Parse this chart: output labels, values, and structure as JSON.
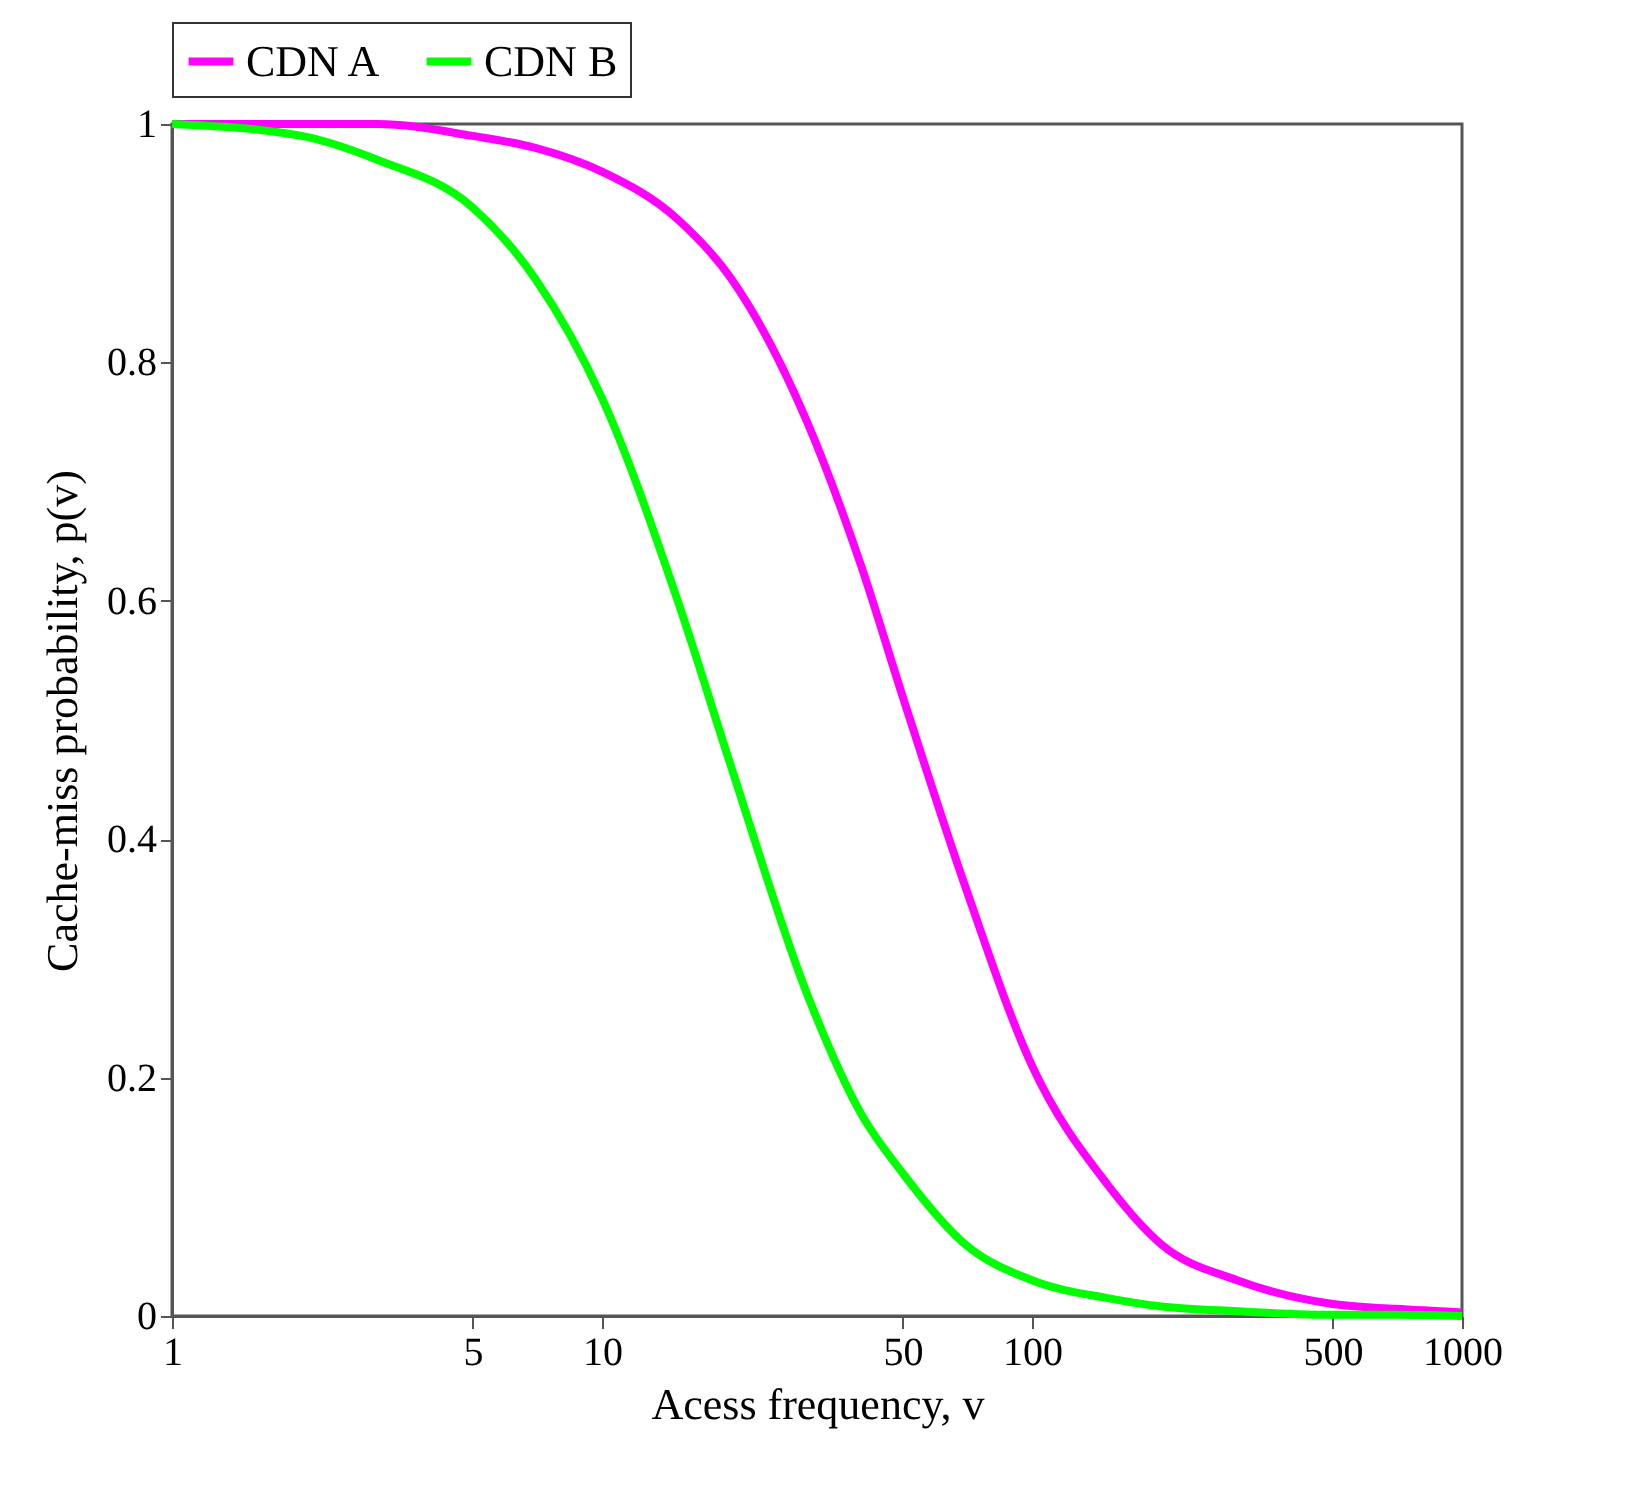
{
  "chart_data": {
    "type": "line",
    "xlabel": "Acess frequency, v",
    "ylabel": "Cache-miss probability, p(v)",
    "x": [
      1,
      2,
      3,
      5,
      7,
      10,
      15,
      20,
      30,
      40,
      50,
      70,
      100,
      150,
      200,
      300,
      500,
      700,
      1000
    ],
    "series": [
      {
        "name": "CDN A",
        "color": "#ff00ff",
        "values": [
          1.0,
          1.0,
          1.0,
          0.99,
          0.98,
          0.96,
          0.92,
          0.87,
          0.75,
          0.63,
          0.52,
          0.36,
          0.21,
          0.11,
          0.06,
          0.03,
          0.01,
          0.006,
          0.003
        ]
      },
      {
        "name": "CDN B",
        "color": "#00ff00",
        "values": [
          1.0,
          0.99,
          0.97,
          0.93,
          0.87,
          0.77,
          0.6,
          0.46,
          0.27,
          0.17,
          0.12,
          0.06,
          0.03,
          0.015,
          0.008,
          0.004,
          0.001,
          0.001,
          0.0
        ]
      }
    ],
    "log": "x",
    "xlim": [
      1,
      1000
    ],
    "xticks": [
      1,
      5,
      10,
      50,
      100,
      500,
      1000
    ],
    "ylim": [
      0,
      1
    ],
    "yticks": [
      0,
      0.2,
      0.4,
      0.6,
      0.8,
      1
    ],
    "grid": false,
    "legend": "top",
    "line_style": "solid",
    "marker": "none"
  }
}
